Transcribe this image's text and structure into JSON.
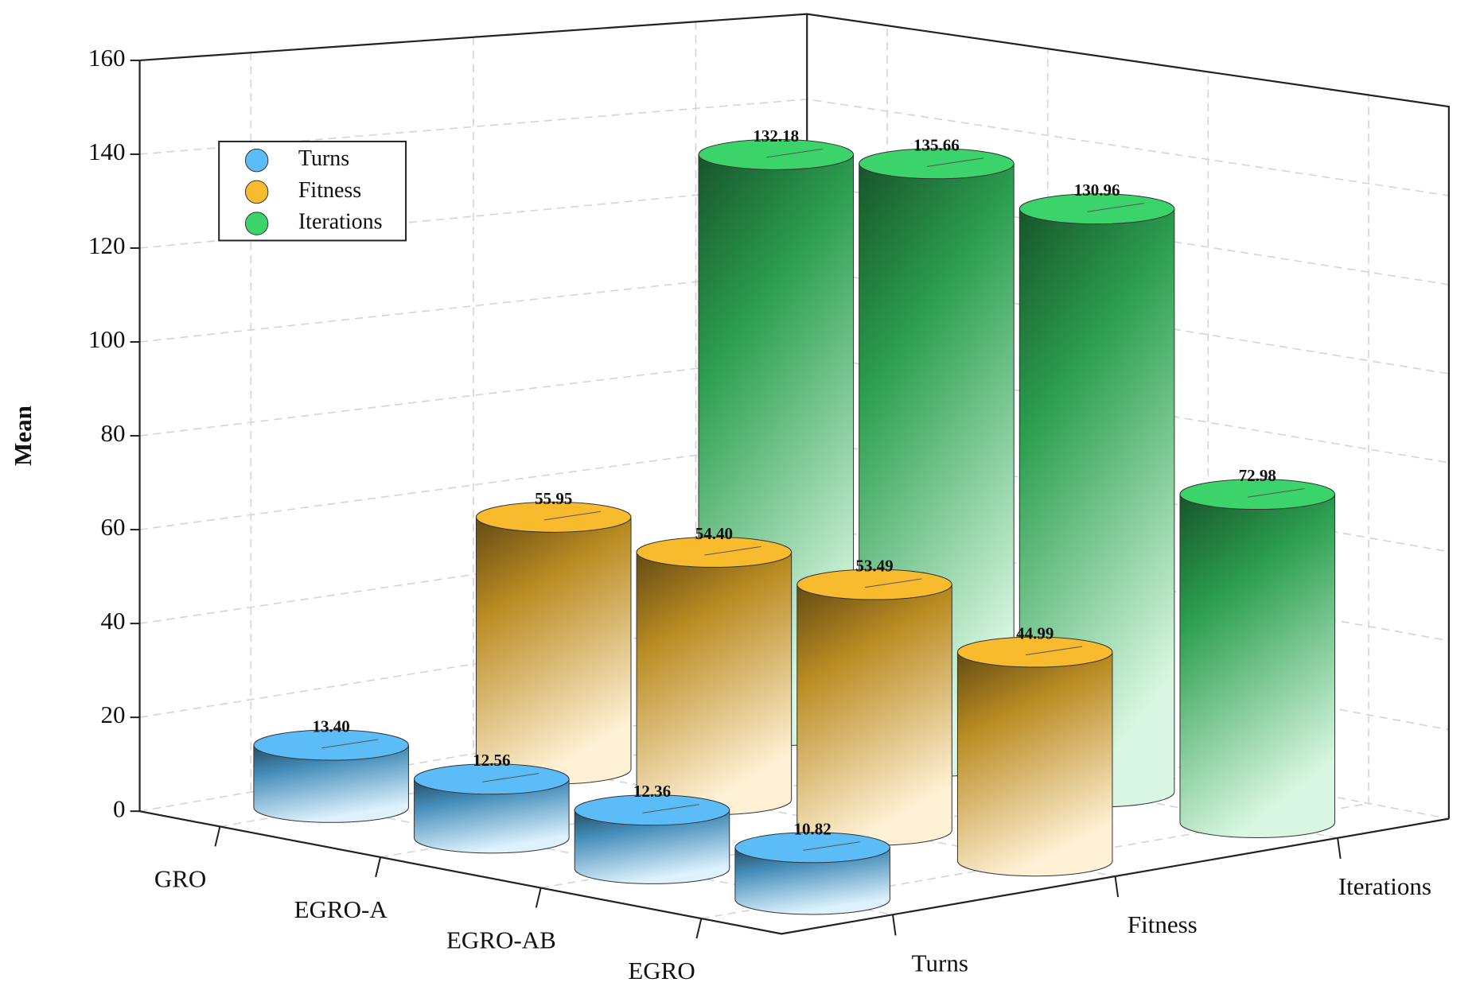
{
  "chart_data": {
    "type": "bar3d",
    "categories": [
      "GRO",
      "EGRO-A",
      "EGRO-AB",
      "EGRO"
    ],
    "series": [
      {
        "name": "Turns",
        "color": "#5bbcf7",
        "values": [
          13.4,
          12.56,
          12.36,
          10.82
        ],
        "value_labels": [
          "13.40",
          "12.56",
          "12.36",
          "10.82"
        ]
      },
      {
        "name": "Fitness",
        "color": "#f8bb2e",
        "values": [
          55.95,
          54.4,
          53.49,
          44.99
        ],
        "value_labels": [
          "55.95",
          "54.40",
          "53.49",
          "44.99"
        ]
      },
      {
        "name": "Iterations",
        "color": "#3ad46a",
        "values": [
          132.18,
          135.66,
          130.96,
          72.98
        ],
        "value_labels": [
          "132.18",
          "135.66",
          "130.96",
          "72.98"
        ]
      }
    ],
    "ylabel": "Mean",
    "ylim": [
      0,
      160
    ],
    "yticks": [
      0,
      20,
      40,
      60,
      80,
      100,
      120,
      140,
      160
    ],
    "grid": true,
    "legend": "upper left"
  }
}
